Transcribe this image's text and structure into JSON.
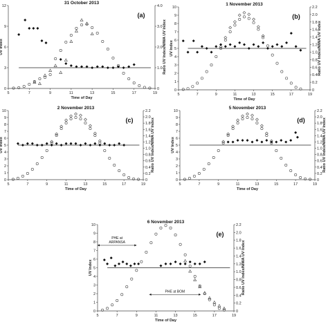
{
  "chart_data": [
    {
      "type": "scatter",
      "title": "31 October 2013",
      "panel_label": "(a)",
      "xlabel": "Time of Day",
      "ylabel": "UV Index",
      "y2label": "Ratio UV Index/NIWA UV Index",
      "xlim": [
        5,
        19
      ],
      "ylim": [
        0,
        12
      ],
      "y2lim": [
        0,
        4
      ],
      "xticks": [
        5,
        7,
        9,
        11,
        13,
        15,
        17,
        19
      ],
      "yticks": [
        0,
        3,
        6,
        9,
        12
      ],
      "y2ticks": [
        "0",
        "1.0",
        "2.0",
        "3.0",
        "4.0"
      ],
      "reference_ratio": 1.0,
      "series": [
        {
          "marker": "open-circle",
          "x": [
            5.5,
            6.0,
            6.5,
            7.0,
            7.5,
            8.0,
            8.5,
            9.0,
            9.5,
            10.0,
            10.5,
            11.0,
            11.5,
            12.0,
            12.5,
            13.0,
            13.5,
            14.0,
            14.5,
            15.0,
            15.5,
            16.0,
            16.5,
            17.0,
            17.5,
            18.0,
            18.5
          ],
          "y": [
            0.05,
            0.1,
            0.3,
            0.6,
            1.0,
            1.4,
            1.6,
            2.0,
            4.3,
            5.5,
            6.7,
            7.7,
            8.7,
            9.2,
            9.3,
            8.8,
            8.0,
            6.8,
            5.7,
            4.4,
            3.3,
            2.2,
            1.4,
            0.8,
            0.4,
            0.15,
            0.05
          ]
        },
        {
          "marker": "open-triangle",
          "x": [
            7.5,
            8.0,
            8.5,
            9.0,
            9.5,
            10.0,
            10.5,
            11.0,
            11.5,
            12.0,
            12.5,
            13.0
          ],
          "y": [
            0.9,
            0.7,
            1.9,
            2.6,
            3.3,
            2.3,
            4.1,
            6.8,
            8.3,
            9.9,
            9.4,
            7.9
          ]
        },
        {
          "marker": "filled-diamond",
          "x": [
            6.0,
            6.6,
            7.0,
            7.4,
            7.8,
            8.2,
            8.6,
            10.0,
            10.5,
            11.0,
            11.5,
            12.0,
            12.5,
            13.0,
            13.5,
            14.0,
            14.5,
            15.0,
            15.5,
            16.0,
            16.5,
            17.0
          ],
          "y2": [
            2.6,
            3.3,
            2.9,
            2.9,
            2.9,
            2.3,
            2.2,
            1.4,
            1.2,
            1.1,
            1.05,
            1.05,
            1.05,
            1.0,
            1.05,
            1.05,
            1.0,
            1.0,
            1.05,
            1.0,
            1.05,
            1.15
          ]
        }
      ]
    },
    {
      "type": "scatter",
      "title": "1 November 2013",
      "panel_label": "(b)",
      "xlabel": "Time of Day",
      "ylabel": "UV Index",
      "y2label": "Ratio UV Index/NIWA UV Index",
      "xlim": [
        5,
        19
      ],
      "ylim": [
        0,
        10
      ],
      "y2lim": [
        0,
        2.2
      ],
      "xticks": [
        5,
        7,
        9,
        11,
        13,
        15,
        17,
        19
      ],
      "yticks": [
        0,
        1,
        2,
        3,
        4,
        5,
        6,
        7,
        8,
        9,
        10
      ],
      "y2ticks": [
        "0",
        "0.2",
        "0.4",
        "0.6",
        "0.8",
        "1.0",
        "1.2",
        "1.4",
        "1.6",
        "1.8",
        "2.0",
        "2.2"
      ],
      "reference_ratio": 1.1,
      "series": [
        {
          "marker": "open-circle",
          "x": [
            5.5,
            6.0,
            6.5,
            7.0,
            7.5,
            8.0,
            8.5,
            9.0,
            9.5,
            10.0,
            10.5,
            11.0,
            11.5,
            12.0,
            12.5,
            13.0,
            13.5,
            14.0,
            14.5,
            15.0,
            15.5,
            16.0,
            16.5,
            17.0,
            17.5,
            18.0
          ],
          "y": [
            0.05,
            0.15,
            0.4,
            0.8,
            1.4,
            2.2,
            3.0,
            4.0,
            5.0,
            6.0,
            7.0,
            7.8,
            8.5,
            8.8,
            8.6,
            8.1,
            7.3,
            6.3,
            5.3,
            4.2,
            3.2,
            2.2,
            1.4,
            0.8,
            0.3,
            0.1
          ]
        },
        {
          "marker": "open-diamond",
          "x": [
            9.5,
            10.0,
            10.5,
            11.0,
            11.5,
            12.0,
            12.5,
            13.0,
            13.5,
            14.0
          ],
          "y": [
            5.2,
            6.3,
            7.5,
            8.2,
            9.0,
            9.3,
            9.1,
            8.5,
            7.6,
            6.5
          ]
        },
        {
          "marker": "filled-diamond",
          "x": [
            5.5,
            6.0,
            6.6,
            7.0,
            7.5,
            8.0,
            8.5,
            9.0,
            9.5,
            10.0,
            10.5,
            11.0,
            11.5,
            12.0,
            12.5,
            13.0,
            13.5,
            14.0,
            14.5,
            15.0,
            15.5,
            16.0,
            16.5,
            17.0,
            17.5,
            18.0
          ],
          "y2": [
            1.3,
            1.0,
            1.3,
            1.0,
            1.15,
            1.1,
            1.0,
            1.15,
            1.2,
            1.15,
            1.2,
            1.15,
            1.25,
            1.2,
            1.1,
            1.2,
            1.15,
            1.25,
            1.1,
            1.15,
            1.2,
            1.15,
            1.25,
            1.5,
            1.15,
            1.05
          ]
        }
      ]
    },
    {
      "type": "scatter",
      "title": "2 November 2013",
      "panel_label": "(c)",
      "xlabel": "Time of Day",
      "ylabel": "UV Index",
      "y2label": "Ratio UV Index/NIWA UV Index",
      "xlim": [
        5,
        19
      ],
      "ylim": [
        0,
        10
      ],
      "y2lim": [
        0,
        2.2
      ],
      "xticks": [
        5,
        7,
        9,
        11,
        13,
        15,
        17,
        19
      ],
      "yticks": [
        0,
        1,
        2,
        3,
        4,
        5,
        6,
        7,
        8,
        9,
        10
      ],
      "y2ticks": [
        "0",
        "0.2",
        "0.4",
        "0.6",
        "0.8",
        "1.0",
        "1.2",
        "1.4",
        "1.6",
        "1.8",
        "2.0",
        "2.2"
      ],
      "reference_ratio": 1.1,
      "series": [
        {
          "marker": "open-circle",
          "x": [
            5.5,
            6.0,
            6.5,
            7.0,
            7.5,
            8.0,
            8.5,
            9.0,
            9.5,
            10.0,
            10.5,
            11.0,
            11.5,
            12.0,
            12.5,
            13.0,
            13.5,
            14.0,
            14.5,
            15.0,
            15.5,
            16.0,
            16.5,
            17.0,
            17.5,
            18.0,
            18.5
          ],
          "y": [
            0.05,
            0.2,
            0.5,
            0.9,
            1.5,
            2.3,
            3.2,
            4.2,
            5.3,
            6.4,
            7.4,
            8.2,
            8.8,
            9.0,
            8.8,
            8.2,
            7.4,
            6.4,
            5.3,
            4.2,
            3.1,
            2.1,
            1.3,
            0.7,
            0.3,
            0.1,
            0.05
          ]
        },
        {
          "marker": "open-diamond",
          "x": [
            9.5,
            10.0,
            10.5,
            11.0,
            11.5,
            12.0,
            12.5,
            13.0,
            13.5,
            14.0,
            14.5
          ],
          "y": [
            5.5,
            6.6,
            7.7,
            8.6,
            9.2,
            9.5,
            9.3,
            8.7,
            7.8,
            6.7,
            5.6
          ]
        },
        {
          "marker": "filled-diamond",
          "x": [
            6.0,
            6.5,
            7.0,
            7.5,
            8.0,
            8.5,
            9.0,
            9.5,
            10.0,
            10.5,
            11.0,
            11.5,
            12.0,
            12.5,
            13.0,
            13.5,
            14.0,
            14.5,
            15.0,
            15.5,
            16.0,
            16.5,
            17.0
          ],
          "y2": [
            1.15,
            1.1,
            1.15,
            1.15,
            1.1,
            1.1,
            1.15,
            1.1,
            1.15,
            1.1,
            1.15,
            1.15,
            1.15,
            1.1,
            1.15,
            1.1,
            1.15,
            1.1,
            1.15,
            1.1,
            1.1,
            1.15,
            1.1
          ]
        }
      ]
    },
    {
      "type": "scatter",
      "title": "5 November 2013",
      "panel_label": "(d)",
      "xlabel": "Time of Day",
      "ylabel": "UV Index",
      "y2label": "Ratio UV Index/NIWA UV Index",
      "xlim": [
        5,
        19
      ],
      "ylim": [
        0,
        10
      ],
      "y2lim": [
        0,
        2.2
      ],
      "xticks": [
        5,
        7,
        9,
        11,
        13,
        15,
        17,
        19
      ],
      "yticks": [
        0,
        1,
        2,
        3,
        4,
        5,
        6,
        7,
        8,
        9,
        10
      ],
      "y2ticks": [
        "0",
        "0.2",
        "0.4",
        "0.6",
        "0.8",
        "1.0",
        "1.2",
        "1.4",
        "1.6",
        "1.8",
        "2.0",
        "2.2"
      ],
      "reference_ratio": 1.1,
      "series": [
        {
          "marker": "open-circle",
          "x": [
            5.5,
            6.0,
            6.5,
            7.0,
            7.5,
            8.0,
            8.5,
            9.0,
            9.5,
            10.0,
            10.5,
            11.0,
            11.5,
            12.0,
            12.5,
            13.0,
            13.5,
            14.0,
            14.5,
            15.0,
            15.5,
            16.0,
            16.5,
            17.0,
            17.5,
            18.0,
            18.5
          ],
          "y": [
            0.05,
            0.2,
            0.5,
            0.9,
            1.5,
            2.3,
            3.2,
            4.2,
            5.3,
            6.4,
            7.4,
            8.2,
            8.8,
            9.0,
            8.8,
            8.2,
            7.4,
            6.4,
            5.3,
            4.2,
            3.1,
            2.1,
            1.3,
            0.7,
            0.3,
            0.1,
            0.05
          ]
        },
        {
          "marker": "open-diamond",
          "x": [
            9.5,
            10.0,
            10.5,
            11.0,
            11.5,
            12.0,
            12.5,
            13.0,
            13.5,
            14.0,
            14.5
          ],
          "y": [
            5.5,
            6.6,
            7.7,
            8.6,
            9.2,
            9.5,
            9.3,
            8.7,
            7.8,
            6.7,
            5.6
          ]
        },
        {
          "marker": "filled-diamond",
          "x": [
            10.0,
            10.5,
            11.0,
            11.5,
            12.0,
            12.5,
            13.0,
            13.5,
            14.0,
            14.5,
            15.0,
            15.5,
            16.0,
            16.5,
            17.0,
            17.2
          ],
          "y2": [
            1.2,
            1.2,
            1.25,
            1.25,
            1.25,
            1.2,
            1.25,
            1.2,
            1.25,
            1.2,
            1.2,
            1.25,
            1.2,
            1.25,
            1.5,
            1.35
          ]
        }
      ]
    },
    {
      "type": "scatter",
      "title": "6 November 2013",
      "panel_label": "(e)",
      "xlabel": "Time of Day",
      "ylabel": "UV Index",
      "y2label": "Ratio UV Index/NIWA UV Index",
      "xlim": [
        5,
        19
      ],
      "ylim": [
        0,
        10
      ],
      "y2lim": [
        0,
        2.2
      ],
      "xticks": [
        5,
        7,
        9,
        11,
        13,
        15,
        17,
        19
      ],
      "yticks": [
        0,
        1,
        2,
        3,
        4,
        5,
        6,
        7,
        8,
        9,
        10
      ],
      "y2ticks": [
        "0",
        "0.2",
        "0.4",
        "0.6",
        "0.8",
        "1.0",
        "1.2",
        "1.4",
        "1.6",
        "1.8",
        "2.0",
        "2.2"
      ],
      "reference_ratio": 1.1,
      "annotations": [
        {
          "text_lines": [
            "PHE at",
            "ARPANSA"
          ],
          "x_start": 5.0,
          "x_end": 9.0,
          "y": 7.6
        },
        {
          "text_lines": [
            "PHE at BOM"
          ],
          "x_start": 10.3,
          "x_end": 15.6,
          "y": 1.9
        }
      ],
      "series": [
        {
          "marker": "open-circle",
          "x": [
            5.5,
            6.0,
            6.5,
            7.0,
            7.5,
            8.0,
            8.5,
            9.0,
            9.5,
            10.0,
            10.5,
            11.0,
            11.5,
            12.0,
            12.5,
            13.0,
            13.5,
            14.0,
            14.5,
            15.0,
            15.5,
            16.0,
            16.5,
            17.0,
            17.5,
            18.0
          ],
          "y": [
            0.1,
            0.3,
            0.7,
            1.2,
            1.9,
            2.8,
            3.7,
            4.7,
            5.7,
            6.8,
            7.9,
            8.9,
            9.6,
            9.9,
            9.6,
            8.8,
            7.7,
            6.5,
            5.2,
            4.0,
            2.9,
            2.0,
            1.3,
            0.7,
            0.3,
            0.1
          ]
        },
        {
          "marker": "open-triangle",
          "x": [
            14.0,
            14.5,
            15.0,
            15.5,
            16.0,
            16.5,
            17.0,
            17.5,
            18.0
          ],
          "y": [
            5.8,
            4.6,
            3.6,
            2.8,
            2.1,
            1.5,
            1.0,
            0.6,
            0.3
          ]
        },
        {
          "marker": "filled-diamond",
          "x": [
            5.7,
            6.0,
            6.4,
            6.8,
            7.2,
            7.6,
            8.0,
            8.4,
            8.8,
            9.2,
            11.5,
            12.0,
            12.5,
            13.0,
            13.5,
            14.0,
            14.5,
            15.0,
            15.5,
            16.0
          ],
          "y2": [
            1.3,
            1.2,
            1.35,
            1.15,
            1.2,
            1.25,
            1.2,
            1.15,
            1.2,
            1.2,
            1.15,
            1.2,
            1.2,
            1.25,
            1.2,
            1.2,
            1.25,
            1.2,
            1.2,
            1.25
          ]
        }
      ]
    }
  ]
}
